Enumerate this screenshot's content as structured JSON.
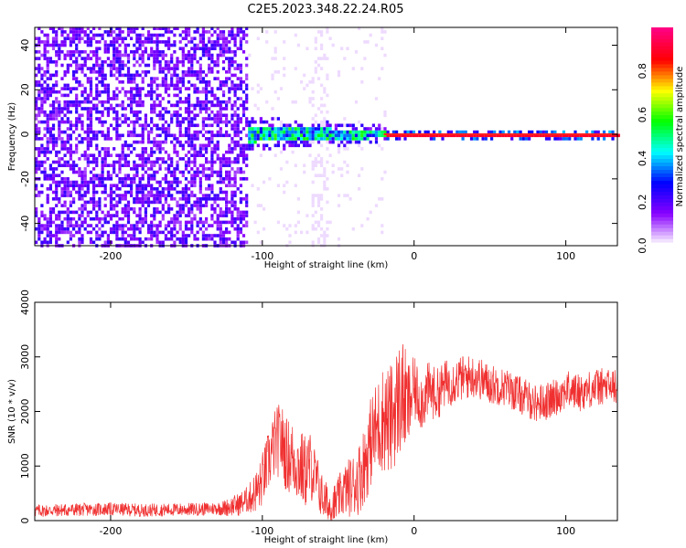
{
  "title": "C2E5.2023.348.22.24.R05",
  "chart_data": [
    {
      "type": "heatmap",
      "xlabel": "Height of straight line (km)",
      "ylabel": "Frequency (Hz)",
      "xlim": [
        -250,
        134
      ],
      "ylim": [
        -50,
        48
      ],
      "x_ticks": [
        -200,
        -100,
        0,
        100
      ],
      "x_tick_labels": [
        "-200",
        "-100",
        "0",
        "100"
      ],
      "y_ticks": [
        -40,
        -20,
        0,
        20,
        40
      ],
      "y_tick_labels": [
        "-40",
        "-20",
        "0",
        "20",
        "40"
      ],
      "colorbar": {
        "label": "Normalized spectral amplitude",
        "range": [
          0,
          1
        ],
        "ticks": [
          0.0,
          0.2,
          0.4,
          0.6,
          0.8
        ],
        "tick_labels": [
          "0.0",
          "0.2",
          "0.4",
          "0.6",
          "0.8"
        ],
        "colors": [
          "#ffffff",
          "#8800ff",
          "#0000ff",
          "#00ffff",
          "#00ff00",
          "#ffff00",
          "#ff0000",
          "#ff0080"
        ]
      },
      "regions": [
        {
          "x_range": [
            -250,
            -110
          ],
          "freq_spread": 50,
          "amplitude": 0.18,
          "note": "broadband noise"
        },
        {
          "x_range": [
            -130,
            -20
          ],
          "freq_spread": 8,
          "amplitude": 0.45,
          "note": "signal emerging near 0 Hz"
        },
        {
          "x_range": [
            -20,
            134
          ],
          "freq_spread": 1,
          "amplitude": 0.9,
          "note": "strong line at 0 Hz"
        }
      ],
      "grid": false,
      "legend": "none"
    },
    {
      "type": "line",
      "xlabel": "Height of straight line (km)",
      "ylabel": "SNR (10 * v/v)",
      "xlim": [
        -250,
        134
      ],
      "ylim": [
        0,
        4000
      ],
      "x_ticks": [
        -200,
        -100,
        0,
        100
      ],
      "x_tick_labels": [
        "-200",
        "-100",
        "0",
        "100"
      ],
      "y_ticks": [
        0,
        1000,
        2000,
        3000,
        4000
      ],
      "y_tick_labels": [
        "0",
        "1000",
        "2000",
        "3000",
        "4000"
      ],
      "series": [
        {
          "color": "#f03030",
          "points": [
            [
              -250,
              180
            ],
            [
              -220,
              200
            ],
            [
              -200,
              210
            ],
            [
              -180,
              190
            ],
            [
              -160,
              200
            ],
            [
              -140,
              210
            ],
            [
              -125,
              230
            ],
            [
              -115,
              300
            ],
            [
              -108,
              420
            ],
            [
              -102,
              600
            ],
            [
              -97,
              1000
            ],
            [
              -92,
              1400
            ],
            [
              -88,
              1500
            ],
            [
              -84,
              1200
            ],
            [
              -80,
              1150
            ],
            [
              -76,
              1000
            ],
            [
              -72,
              900
            ],
            [
              -68,
              1000
            ],
            [
              -64,
              700
            ],
            [
              -60,
              400
            ],
            [
              -56,
              250
            ],
            [
              -52,
              300
            ],
            [
              -48,
              500
            ],
            [
              -44,
              600
            ],
            [
              -40,
              650
            ],
            [
              -36,
              800
            ],
            [
              -32,
              1100
            ],
            [
              -28,
              1500
            ],
            [
              -24,
              1700
            ],
            [
              -20,
              1900
            ],
            [
              -16,
              1800
            ],
            [
              -12,
              2100
            ],
            [
              -8,
              2300
            ],
            [
              -4,
              2100
            ],
            [
              0,
              2400
            ],
            [
              5,
              2200
            ],
            [
              10,
              2400
            ],
            [
              15,
              2300
            ],
            [
              20,
              2500
            ],
            [
              30,
              2600
            ],
            [
              40,
              2650
            ],
            [
              50,
              2500
            ],
            [
              60,
              2450
            ],
            [
              70,
              2300
            ],
            [
              80,
              2150
            ],
            [
              90,
              2200
            ],
            [
              100,
              2400
            ],
            [
              110,
              2350
            ],
            [
              120,
              2450
            ],
            [
              134,
              2450
            ]
          ],
          "noise_amplitude": [
            [
              -250,
              120
            ],
            [
              -130,
              120
            ],
            [
              -110,
              250
            ],
            [
              -100,
              500
            ],
            [
              -88,
              700
            ],
            [
              -70,
              700
            ],
            [
              -60,
              400
            ],
            [
              -50,
              400
            ],
            [
              -35,
              700
            ],
            [
              -20,
              1000
            ],
            [
              -8,
              1100
            ],
            [
              0,
              600
            ],
            [
              20,
              450
            ],
            [
              60,
              350
            ],
            [
              134,
              350
            ]
          ]
        }
      ],
      "grid": false,
      "legend": "none"
    }
  ]
}
